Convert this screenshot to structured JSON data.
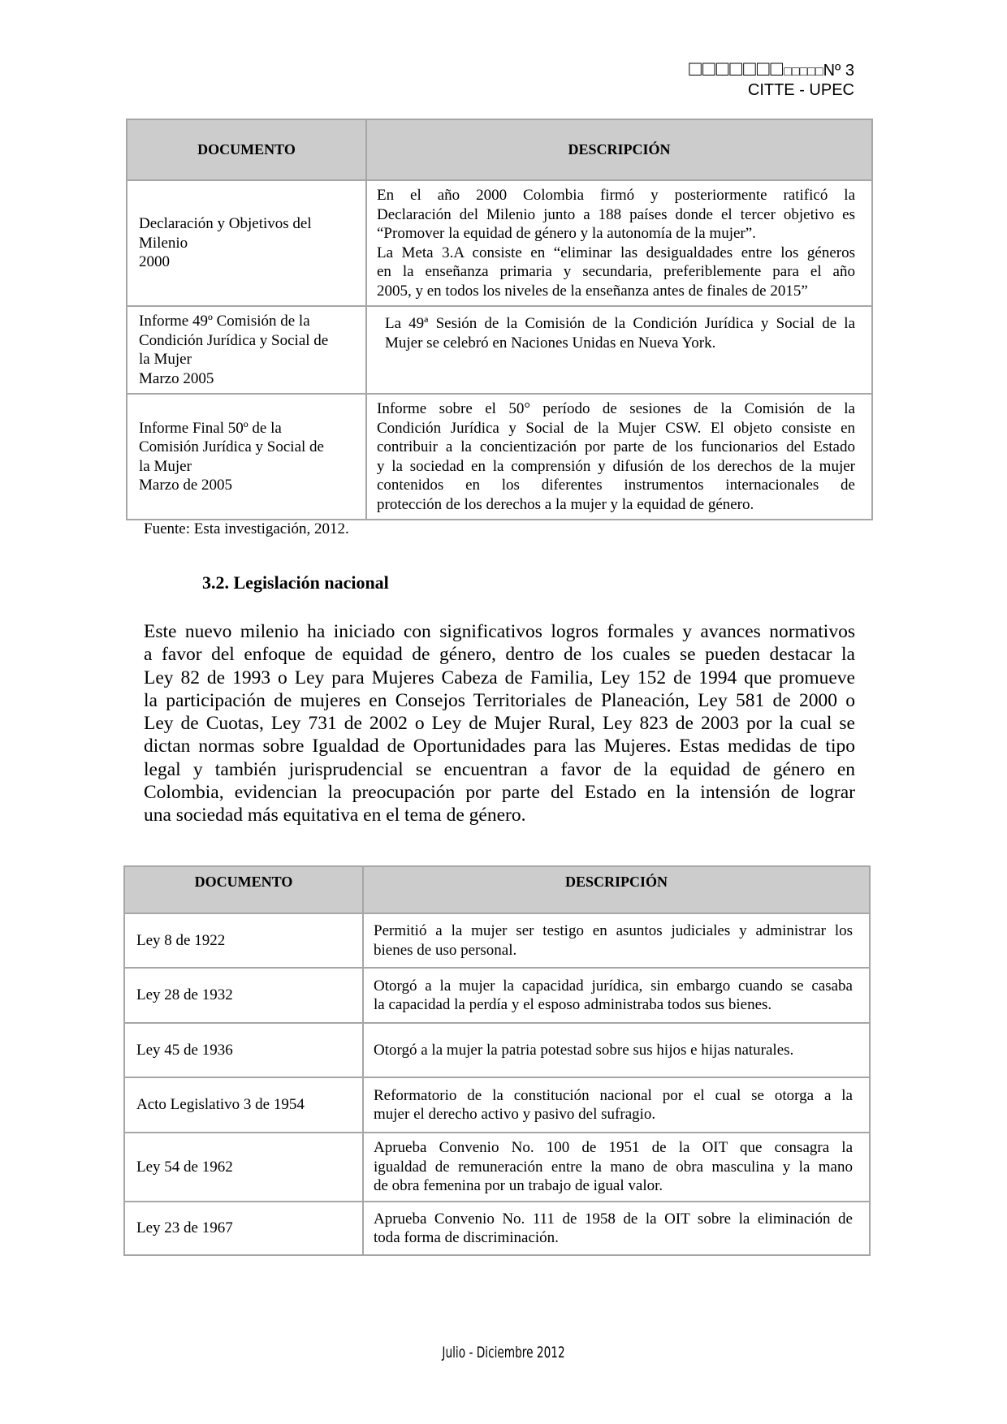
{
  "header": {
    "title_glyphs_large": "□□□□□□□",
    "title_glyphs_small": "□□□□□",
    "issue": "Nº 3",
    "institution": "CITTE - UPEC"
  },
  "table1": {
    "columns": [
      "DOCUMENTO",
      "DESCRIPCIÓN"
    ],
    "rows": [
      {
        "document": [
          "Declaración y Objetivos del",
          "Milenio",
          "2000"
        ],
        "description": [
          [
            "En el año 2000 Colombia firmó  y posteriormente ratificó la",
            "Declaración del Milenio junto a 188 países donde el tercer objetivo es",
            "“Promover la equidad de género y la autonomía de la mujer”."
          ],
          [
            "La Meta 3.A consiste en “eliminar las desigualdades entre los géneros",
            "en la enseñanza primaria y secundaria, preferiblemente para el año",
            "2005, y en todos los niveles de la enseñanza antes de finales de 2015”"
          ]
        ]
      },
      {
        "document": [
          "Informe 49º Comisión de la",
          "Condición Jurídica y Social de",
          "la Mujer",
          "Marzo 2005"
        ],
        "description": [
          [
            "La 49ª Sesión de la Comisión de la Condición Jurídica y Social de la",
            "Mujer se celebró en Naciones Unidas en Nueva York."
          ]
        ]
      },
      {
        "document": [
          "Informe Final 50º de la",
          "Comisión Jurídica y Social de",
          "la Mujer",
          "Marzo de 2005"
        ],
        "description": [
          [
            "Informe sobre el 50° período de sesiones de la Comisión de la",
            "Condición Jurídica y Social de la Mujer CSW. El objeto consiste en",
            "contribuir a la concientización por parte de los funcionarios del Estado",
            "y la sociedad en la comprensión y difusión de los derechos de la mujer",
            "contenidos en los diferentes instrumentos internacionales de",
            "protección de los derechos a la mujer y la equidad de género."
          ]
        ]
      }
    ],
    "source": "Fuente: Esta investigación, 2012."
  },
  "section": {
    "heading": "3.2. Legislación nacional",
    "paragraph": [
      "Este nuevo milenio ha iniciado con significativos logros formales y avances normativos",
      "a favor del enfoque de equidad de género, dentro de los cuales se pueden destacar la",
      "Ley 82 de 1993 o Ley para Mujeres Cabeza de Familia, Ley 152 de 1994 que promueve",
      "la participación de mujeres en Consejos Territoriales de Planeación, Ley 581 de 2000 o",
      "Ley de Cuotas, Ley 731 de 2002 o Ley de Mujer Rural, Ley 823 de 2003 por la cual se",
      "dictan normas sobre Igualdad de Oportunidades para las Mujeres. Estas medidas de tipo",
      "legal y también jurisprudencial se encuentran a favor de la equidad de género en",
      "Colombia, evidencian la preocupación por parte del Estado en la  intensión de lograr",
      "una sociedad más equitativa en el tema de género."
    ]
  },
  "table2": {
    "columns": [
      "DOCUMENTO",
      "DESCRIPCIÓN"
    ],
    "rows": [
      {
        "document": [
          "Ley 8 de 1922"
        ],
        "description": [
          [
            "Permitió a la mujer ser testigo en asuntos judiciales y administrar los",
            "bienes de uso personal."
          ]
        ]
      },
      {
        "document": [
          "Ley 28 de 1932"
        ],
        "description": [
          [
            "Otorgó a la mujer la capacidad jurídica, sin embargo cuando se casaba",
            "la capacidad la perdía y el esposo administraba todos sus bienes."
          ]
        ]
      },
      {
        "document": [
          "Ley 45 de 1936"
        ],
        "description": [
          [
            "Otorgó a la mujer la patria potestad sobre sus hijos e hijas naturales."
          ]
        ]
      },
      {
        "document": [
          "Acto Legislativo 3 de 1954"
        ],
        "description": [
          [
            "Reformatorio de la constitución nacional por el cual se  otorga a la",
            "mujer el derecho activo y pasivo del sufragio."
          ]
        ]
      },
      {
        "document": [
          "Ley 54 de 1962"
        ],
        "description": [
          [
            "Aprueba Convenio No. 100 de 1951 de la OIT que consagra la",
            "igualdad de remuneración entre la mano de obra masculina y la mano",
            "de obra femenina por un trabajo de igual valor."
          ]
        ]
      },
      {
        "document": [
          "Ley 23 de 1967"
        ],
        "description": [
          [
            "Aprueba Convenio No. 111 de 1958 de la OIT sobre la eliminación de",
            "toda forma de discriminación."
          ]
        ]
      }
    ]
  },
  "footer": {
    "text": "Julio - Diciembre 2012"
  },
  "colors": {
    "table_header_bg": "#cccccc",
    "table_border": "#a6a6a6"
  }
}
